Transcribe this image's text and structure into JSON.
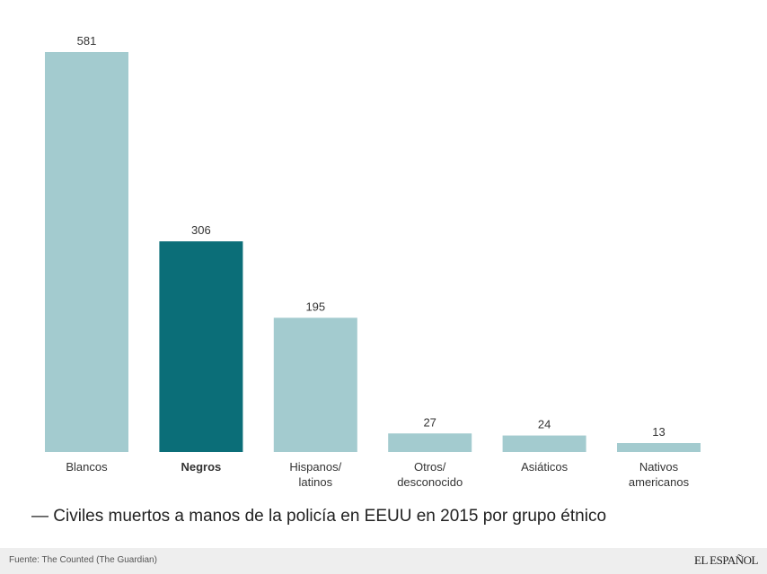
{
  "chart_data": {
    "type": "bar",
    "title": "— Civiles muertos a manos de la policía en EEUU en 2015 por grupo étnico",
    "source": "Fuente: The Counted (The Guardian)",
    "brand": "EL ESPAÑOL",
    "categories": [
      "Blancos",
      "Negros",
      "Hispanos/\nlatinos",
      "Otros/\ndesconocido",
      "Asiáticos",
      "Nativos\namericanos"
    ],
    "values": [
      581,
      306,
      195,
      27,
      24,
      13
    ],
    "color": "#a3cbcf",
    "highlight": "Negros",
    "highlight_color": "#0b6e78"
  }
}
